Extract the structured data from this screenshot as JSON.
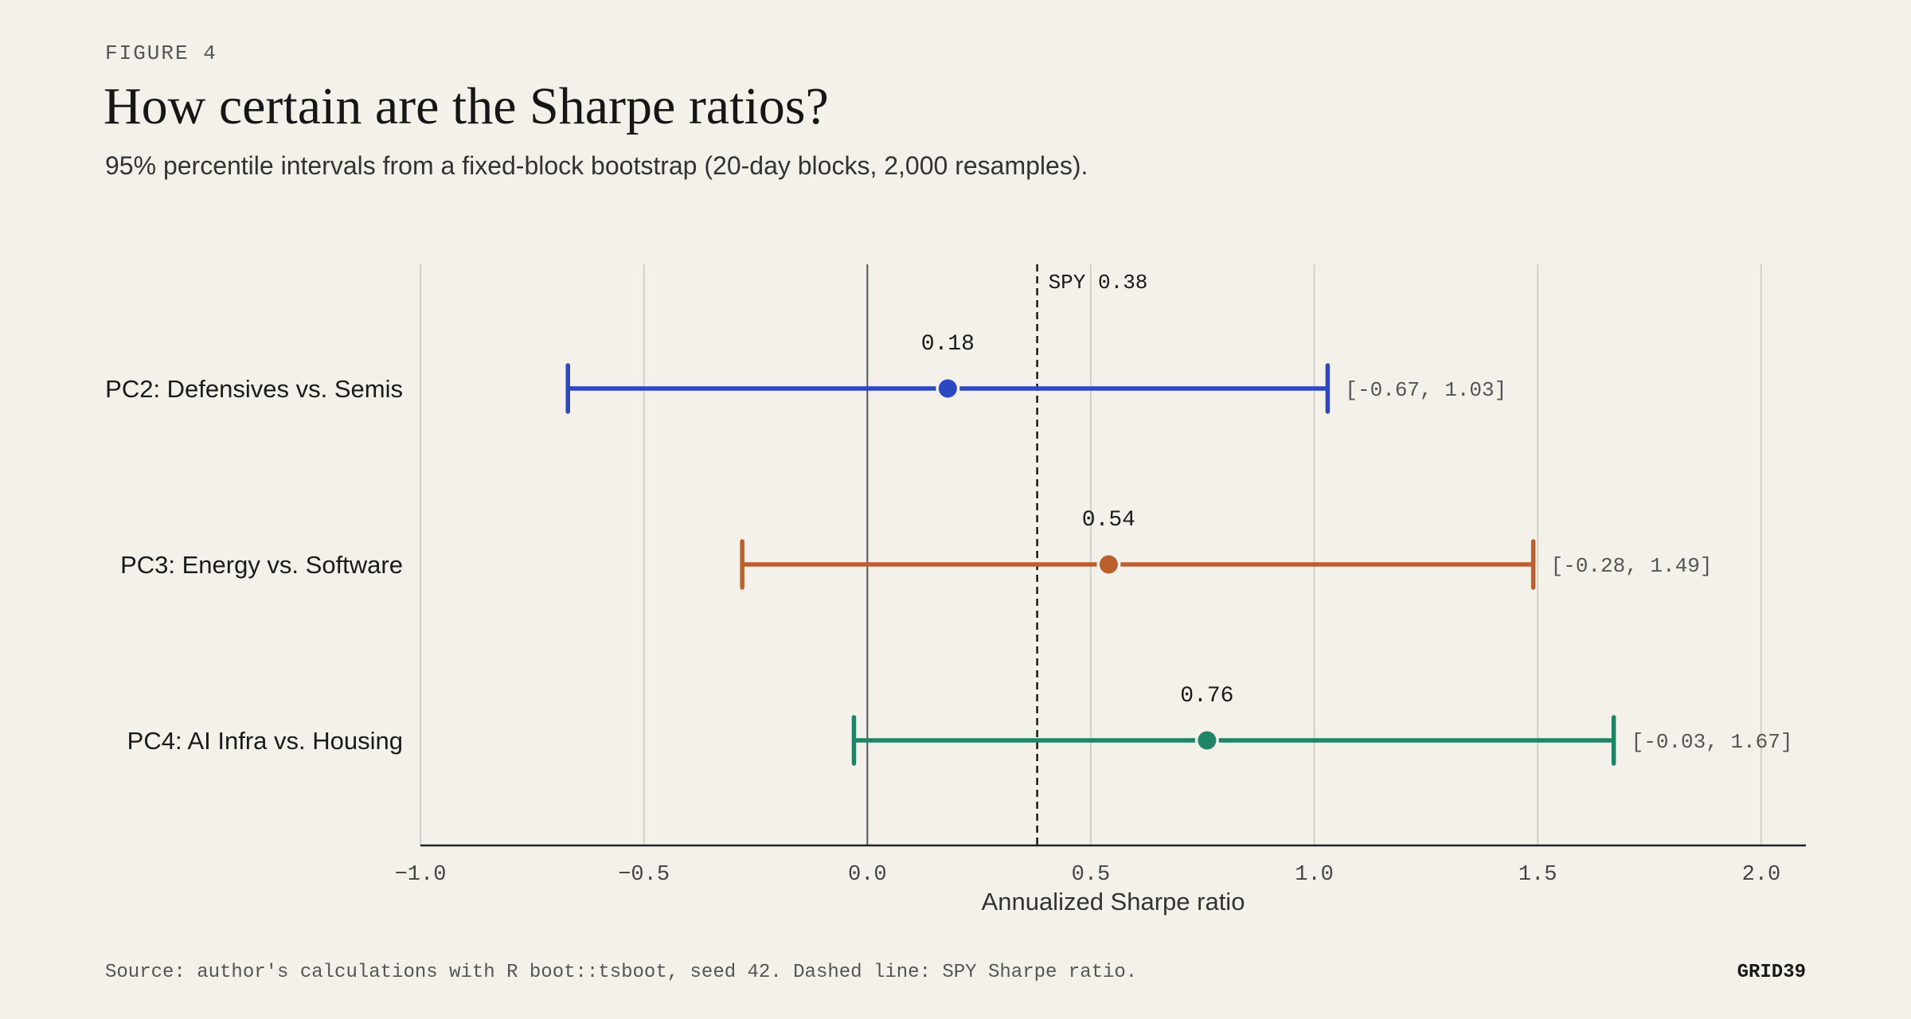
{
  "figure_label": "FIGURE 4",
  "title": "How certain are the Sharpe ratios?",
  "subtitle": "95% percentile intervals from a fixed-block bootstrap (20-day blocks, 2,000 resamples).",
  "footer": {
    "source": "Source: author's calculations with R boot::tsboot, seed 42. Dashed line: SPY Sharpe ratio.",
    "brand": "GRID39"
  },
  "chart_data": {
    "type": "interval",
    "xlabel": "Annualized Sharpe ratio",
    "xlim": [
      -1.0,
      2.1
    ],
    "xticks": [
      -1.0,
      -0.5,
      0.0,
      0.5,
      1.0,
      1.5,
      2.0
    ],
    "xtick_labels": [
      "−1.0",
      "−0.5",
      "0.0",
      "0.5",
      "1.0",
      "1.5",
      "2.0"
    ],
    "grid": true,
    "reference_line": {
      "label": "SPY 0.38",
      "value": 0.38
    },
    "series": [
      {
        "name": "PC2: Defensives vs. Semis",
        "estimate": 0.18,
        "estimate_label": "0.18",
        "lower": -0.67,
        "upper": 1.03,
        "interval_label": "[-0.67, 1.03]",
        "color": "#2b48c2"
      },
      {
        "name": "PC3: Energy vs. Software",
        "estimate": 0.54,
        "estimate_label": "0.54",
        "lower": -0.28,
        "upper": 1.49,
        "interval_label": "[-0.28, 1.49]",
        "color": "#bb5f2e"
      },
      {
        "name": "PC4: AI Infra vs. Housing",
        "estimate": 0.76,
        "estimate_label": "0.76",
        "lower": -0.03,
        "upper": 1.67,
        "interval_label": "[-0.03, 1.67]",
        "color": "#1f8468"
      }
    ]
  }
}
